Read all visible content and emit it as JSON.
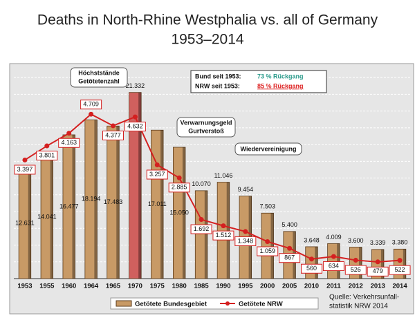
{
  "chart_data": {
    "type": "bar-line",
    "title": "Deaths in North-Rhine Westphalia vs. all of Germany",
    "subtitle": "1953–2014",
    "categories": [
      "1953",
      "1955",
      "1960",
      "1964",
      "1965",
      "1970",
      "1975",
      "1980",
      "1985",
      "1990",
      "1995",
      "2000",
      "2005",
      "2010",
      "2011",
      "2012",
      "2013",
      "2014"
    ],
    "series": [
      {
        "name": "Getötete Bundesgebiet",
        "type": "bar",
        "color": "#c89a66",
        "colors": [
          "#c89a66",
          "#c89a66",
          "#c89a66",
          "#c89a66",
          "#c89a66",
          "#d0605e",
          "#c89a66",
          "#c89a66",
          "#c89a66",
          "#c89a66",
          "#c89a66",
          "#c89a66",
          "#c89a66",
          "#c89a66",
          "#c89a66",
          "#c89a66",
          "#c89a66",
          "#c89a66"
        ],
        "values": [
          12631,
          14041,
          16477,
          18194,
          17483,
          21332,
          17011,
          15050,
          10070,
          11046,
          9454,
          7503,
          5400,
          3648,
          4009,
          3600,
          3339,
          3380
        ],
        "value_labels": [
          "12.631",
          "14.041",
          "16.477",
          "18.194",
          "17.483",
          "21.332",
          "17.011",
          "15.050",
          "10.070",
          "11.046",
          "9.454",
          "7.503",
          "5.400",
          "3.648",
          "4.009",
          "3.600",
          "3.339",
          "3.380"
        ]
      },
      {
        "name": "Getötete NRW",
        "type": "line",
        "axis": "y2",
        "color": "#d42020",
        "values": [
          3397,
          3801,
          4163,
          4709,
          4377,
          4632,
          3257,
          2885,
          1692,
          1512,
          1348,
          1059,
          867,
          560,
          634,
          526,
          479,
          522
        ],
        "value_labels": [
          "3.397",
          "3.801",
          "4.163",
          "4.709",
          "4.377",
          "4.632",
          "3.257",
          "2.885",
          "1.692",
          "1.512",
          "1.348",
          "1.059",
          "867",
          "560",
          "634",
          "526",
          "479",
          "522"
        ]
      }
    ],
    "ylim": [
      0,
      24000
    ],
    "y2lim": [
      0,
      6000
    ],
    "grid": true,
    "legend": "bottom",
    "annotations": [
      "Bund seit 1953:",
      "73 % Rückgang",
      "NRW seit 1953:",
      "85 % Rückgang",
      "Höchststände",
      "Getötetenzahl",
      "Verwarnungsgeld",
      "Gurtverstoß",
      "Wiedervereinigung",
      "Quelle: Verkehrsunfall-",
      "statistik NRW 2014"
    ]
  }
}
